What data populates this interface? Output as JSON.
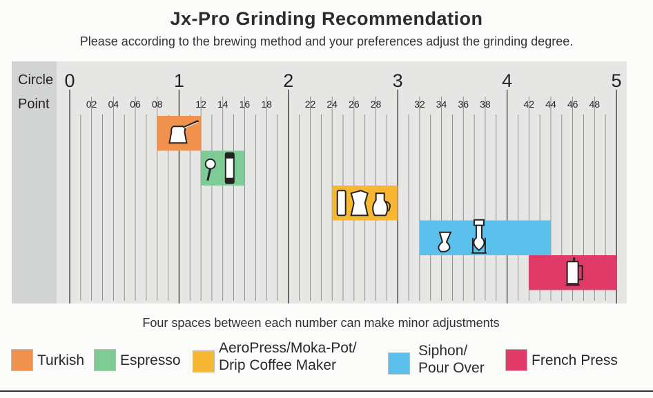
{
  "title": "Jx-Pro  Grinding Recommendation",
  "subtitle": "Please according to the brewing method and your preferences adjust the grinding degree.",
  "footnote": "Four spaces between each number can make minor adjustments",
  "chart_data": {
    "type": "bar",
    "orientation": "horizontal-range",
    "row_labels": {
      "circle": "Circle",
      "point": "Point"
    },
    "circle_ticks": [
      "0",
      "1",
      "2",
      "3",
      "4",
      "5"
    ],
    "point_ticks": [
      {
        "value": 2,
        "label": "02"
      },
      {
        "value": 4,
        "label": "04"
      },
      {
        "value": 6,
        "label": "06"
      },
      {
        "value": 8,
        "label": "08"
      },
      {
        "value": 12,
        "label": "12"
      },
      {
        "value": 14,
        "label": "14"
      },
      {
        "value": 16,
        "label": "16"
      },
      {
        "value": 18,
        "label": "18"
      },
      {
        "value": 22,
        "label": "22"
      },
      {
        "value": 24,
        "label": "24"
      },
      {
        "value": 26,
        "label": "26"
      },
      {
        "value": 28,
        "label": "28"
      },
      {
        "value": 32,
        "label": "32"
      },
      {
        "value": 34,
        "label": "34"
      },
      {
        "value": 36,
        "label": "36"
      },
      {
        "value": 38,
        "label": "38"
      },
      {
        "value": 42,
        "label": "42"
      },
      {
        "value": 44,
        "label": "44"
      },
      {
        "value": 46,
        "label": "46"
      },
      {
        "value": 48,
        "label": "48"
      }
    ],
    "xlim": [
      0,
      50
    ],
    "minor_step": 1,
    "grid": true,
    "series": [
      {
        "name": "Turkish",
        "start": 8,
        "end": 12,
        "color": "#f0924e",
        "icon": "turkish-pot-icon"
      },
      {
        "name": "Espresso",
        "start": 12,
        "end": 16,
        "color": "#7ecb95",
        "icon": "portafilter-icon"
      },
      {
        "name": "AeroPress/Moka-Pot/ Drip Coffee Maker",
        "start": 24,
        "end": 30,
        "color": "#f7b733",
        "icon": "moka-pot-icon"
      },
      {
        "name": "Siphon/ Pour Over",
        "start": 32,
        "end": 44,
        "color": "#5cc0ec",
        "icon": "siphon-icon"
      },
      {
        "name": "French Press",
        "start": 42,
        "end": 50,
        "color": "#e03a68",
        "icon": "french-press-icon"
      }
    ]
  },
  "legend": [
    {
      "lines": [
        "Turkish"
      ],
      "color": "#f0924e"
    },
    {
      "lines": [
        "Espresso"
      ],
      "color": "#7ecb95"
    },
    {
      "lines": [
        "AeroPress/Moka-Pot/",
        "Drip Coffee Maker"
      ],
      "color": "#f7b733"
    },
    {
      "lines": [
        "Siphon/",
        "Pour Over"
      ],
      "color": "#5cc0ec"
    },
    {
      "lines": [
        "French Press"
      ],
      "color": "#e03a68"
    }
  ]
}
